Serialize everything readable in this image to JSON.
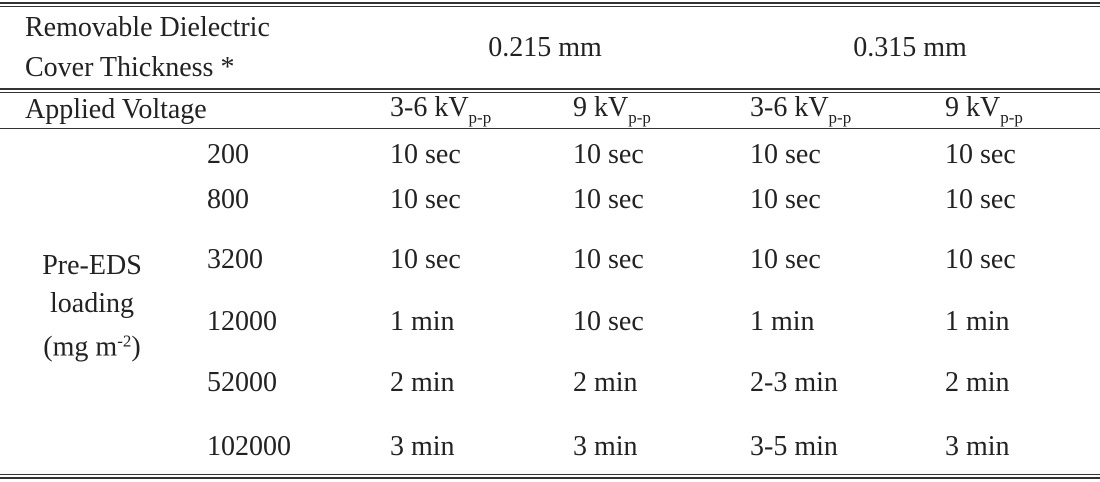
{
  "table": {
    "header": {
      "thickness_label": [
        "Removable Dielectric",
        "Cover Thickness *"
      ],
      "thicknesses": [
        "0.215 mm",
        "0.315 mm"
      ]
    },
    "voltage_row": {
      "label": "Applied Voltage",
      "columns": [
        {
          "base": "3-6 kV",
          "sub": "p-p"
        },
        {
          "base": "9 kV",
          "sub": "p-p"
        },
        {
          "base": "3-6 kV",
          "sub": "p-p"
        },
        {
          "base": "9 kV",
          "sub": "p-p"
        }
      ]
    },
    "row_group_label": {
      "lines": [
        "Pre-EDS",
        "loading"
      ],
      "unit": "(mg m",
      "sup": "-2",
      "after": ")"
    },
    "rows": [
      [
        200,
        "10 sec",
        "10 sec",
        "10 sec",
        "10 sec"
      ],
      [
        800,
        "10 sec",
        "10 sec",
        "10 sec",
        "10 sec"
      ],
      [
        3200,
        "10 sec",
        "10 sec",
        "10 sec",
        "10 sec"
      ],
      [
        12000,
        "1 min",
        "10 sec",
        "1 min",
        "1 min"
      ],
      [
        52000,
        "2 min",
        "2 min",
        "2-3 min",
        "2 min"
      ],
      [
        102000,
        "3 min",
        "3 min",
        "3-5 min",
        "3 min"
      ]
    ]
  }
}
